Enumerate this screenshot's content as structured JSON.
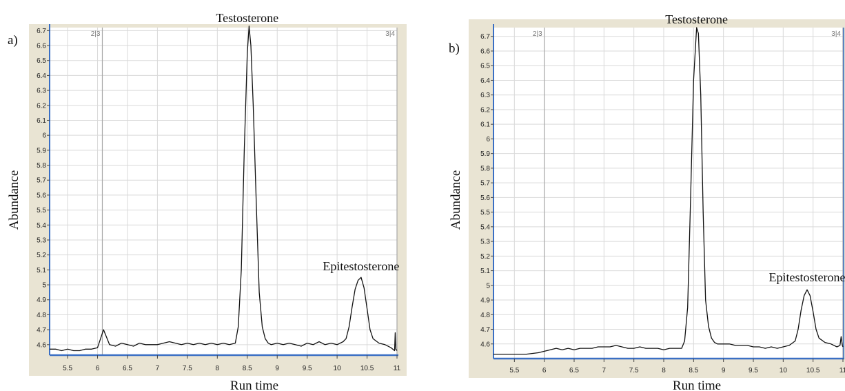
{
  "chart_data": [
    {
      "type": "line",
      "panel_label": "a)",
      "xlabel": "Run time",
      "ylabel": "Abundance",
      "xlim": [
        5.2,
        11.0
      ],
      "ylim": [
        4.53,
        6.72
      ],
      "xticks": [
        5.5,
        6,
        6.5,
        7,
        7.5,
        8,
        8.5,
        9,
        9.5,
        10,
        10.5,
        11
      ],
      "xtick_labels": [
        "5.5",
        "6",
        "6.5",
        "7",
        "7.5",
        "8",
        "8.5",
        "9",
        "9.5",
        "10",
        "10.5",
        "11"
      ],
      "yticks": [
        4.6,
        4.7,
        4.8,
        4.9,
        5,
        5.1,
        5.2,
        5.3,
        5.4,
        5.5,
        5.6,
        5.7,
        5.8,
        5.9,
        6,
        6.1,
        6.2,
        6.3,
        6.4,
        6.5,
        6.6,
        6.7
      ],
      "ytick_labels": [
        "4.6",
        "4.7",
        "4.8",
        "4.9",
        "5",
        "5.1",
        "5.2",
        "5.3",
        "5.4",
        "5.5",
        "5.6",
        "5.7",
        "5.8",
        "5.9",
        "6",
        "6.1",
        "6.2",
        "6.3",
        "6.4",
        "6.5",
        "6.6",
        "6.7"
      ],
      "grid": true,
      "markers": [
        {
          "x": 6.08,
          "label": "2|3"
        },
        {
          "x": 11.0,
          "label": "3|4"
        }
      ],
      "annotations": [
        {
          "text": "Testosterone",
          "x": 8.5,
          "y": 6.73
        },
        {
          "text": "Epitestosterone",
          "x": 10.4,
          "y": 5.07
        }
      ],
      "series": [
        {
          "x": [
            5.2,
            5.3,
            5.4,
            5.5,
            5.6,
            5.7,
            5.8,
            5.9,
            6.0,
            6.05,
            6.1,
            6.15,
            6.2,
            6.3,
            6.4,
            6.5,
            6.6,
            6.7,
            6.8,
            6.9,
            7.0,
            7.1,
            7.2,
            7.3,
            7.4,
            7.5,
            7.6,
            7.7,
            7.8,
            7.9,
            8.0,
            8.1,
            8.2,
            8.3,
            8.35,
            8.4,
            8.45,
            8.5,
            8.53,
            8.56,
            8.6,
            8.65,
            8.7,
            8.75,
            8.8,
            8.85,
            8.9,
            9.0,
            9.1,
            9.2,
            9.3,
            9.4,
            9.5,
            9.6,
            9.7,
            9.8,
            9.9,
            10.0,
            10.1,
            10.15,
            10.2,
            10.25,
            10.3,
            10.35,
            10.4,
            10.45,
            10.5,
            10.55,
            10.6,
            10.7,
            10.8,
            10.9,
            10.96,
            10.97,
            10.98,
            11.0
          ],
          "y": [
            4.57,
            4.57,
            4.56,
            4.57,
            4.56,
            4.56,
            4.57,
            4.57,
            4.58,
            4.64,
            4.7,
            4.65,
            4.6,
            4.59,
            4.61,
            4.6,
            4.59,
            4.61,
            4.6,
            4.6,
            4.6,
            4.61,
            4.62,
            4.61,
            4.6,
            4.61,
            4.6,
            4.61,
            4.6,
            4.61,
            4.6,
            4.61,
            4.6,
            4.61,
            4.72,
            5.1,
            5.9,
            6.55,
            6.73,
            6.6,
            6.2,
            5.55,
            4.95,
            4.72,
            4.64,
            4.61,
            4.6,
            4.61,
            4.6,
            4.61,
            4.6,
            4.59,
            4.61,
            4.6,
            4.62,
            4.6,
            4.61,
            4.6,
            4.62,
            4.64,
            4.72,
            4.85,
            4.97,
            5.03,
            5.05,
            4.98,
            4.84,
            4.7,
            4.64,
            4.61,
            4.6,
            4.58,
            4.56,
            4.68,
            4.57,
            4.56
          ]
        }
      ]
    },
    {
      "type": "line",
      "panel_label": "b)",
      "xlabel": "Run time",
      "ylabel": "Abundance",
      "xlim": [
        5.15,
        11.0
      ],
      "ylim": [
        4.5,
        6.76
      ],
      "xticks": [
        5.5,
        6,
        6.5,
        7,
        7.5,
        8,
        8.5,
        9,
        9.5,
        10,
        10.5,
        11
      ],
      "xtick_labels": [
        "5.5",
        "6",
        "6.5",
        "7",
        "7.5",
        "8",
        "8.5",
        "9",
        "9.5",
        "10",
        "10.5",
        "11"
      ],
      "yticks": [
        4.6,
        4.7,
        4.8,
        4.9,
        5,
        5.1,
        5.2,
        5.3,
        5.4,
        5.5,
        5.6,
        5.7,
        5.8,
        5.9,
        6,
        6.1,
        6.2,
        6.3,
        6.4,
        6.5,
        6.6,
        6.7
      ],
      "ytick_labels": [
        "4.6",
        "4.7",
        "4.8",
        "4.9",
        "5",
        "5.1",
        "5.2",
        "5.3",
        "5.4",
        "5.5",
        "5.6",
        "5.7",
        "5.8",
        "5.9",
        "6",
        "6.1",
        "6.2",
        "6.3",
        "6.4",
        "6.5",
        "6.6",
        "6.7"
      ],
      "grid": true,
      "markers": [
        {
          "x": 6.0,
          "label": "2|3"
        },
        {
          "x": 11.0,
          "label": "3|4"
        }
      ],
      "annotations": [
        {
          "text": "Testosterone",
          "x": 8.55,
          "y": 6.76
        },
        {
          "text": "Epitestosterone",
          "x": 10.4,
          "y": 5.0
        }
      ],
      "series": [
        {
          "x": [
            5.15,
            5.3,
            5.5,
            5.7,
            5.9,
            6.0,
            6.1,
            6.2,
            6.3,
            6.4,
            6.5,
            6.6,
            6.7,
            6.8,
            6.9,
            7.0,
            7.1,
            7.2,
            7.3,
            7.4,
            7.5,
            7.6,
            7.7,
            7.8,
            7.9,
            8.0,
            8.1,
            8.2,
            8.3,
            8.35,
            8.4,
            8.45,
            8.5,
            8.55,
            8.58,
            8.62,
            8.66,
            8.7,
            8.75,
            8.8,
            8.85,
            8.9,
            9.0,
            9.1,
            9.2,
            9.3,
            9.4,
            9.5,
            9.6,
            9.7,
            9.8,
            9.9,
            10.0,
            10.1,
            10.2,
            10.25,
            10.3,
            10.35,
            10.4,
            10.45,
            10.5,
            10.55,
            10.6,
            10.7,
            10.8,
            10.9,
            10.95,
            10.97,
            10.99,
            11.0
          ],
          "y": [
            4.53,
            4.53,
            4.53,
            4.53,
            4.54,
            4.55,
            4.56,
            4.57,
            4.56,
            4.57,
            4.56,
            4.57,
            4.57,
            4.57,
            4.58,
            4.58,
            4.58,
            4.59,
            4.58,
            4.57,
            4.57,
            4.58,
            4.57,
            4.57,
            4.57,
            4.56,
            4.57,
            4.57,
            4.57,
            4.62,
            4.85,
            5.6,
            6.4,
            6.76,
            6.72,
            6.3,
            5.5,
            4.9,
            4.72,
            4.64,
            4.61,
            4.6,
            4.6,
            4.6,
            4.59,
            4.59,
            4.59,
            4.58,
            4.58,
            4.57,
            4.58,
            4.57,
            4.58,
            4.59,
            4.62,
            4.7,
            4.83,
            4.93,
            4.97,
            4.93,
            4.82,
            4.7,
            4.64,
            4.61,
            4.6,
            4.58,
            4.59,
            4.65,
            4.59,
            4.58
          ]
        }
      ]
    }
  ]
}
